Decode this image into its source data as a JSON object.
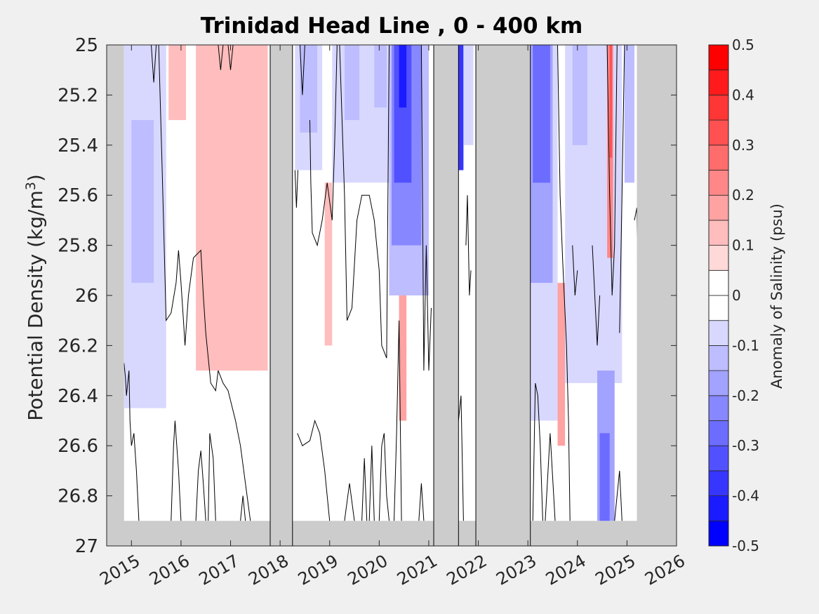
{
  "chart_data": {
    "type": "heatmap",
    "title": "Trinidad Head Line , 0 - 400 km",
    "xlabel": "",
    "ylabel": "Potential Density (kg/m",
    "ylabel_sup": "3",
    "ylabel_close": ")",
    "xlim": [
      2014.5,
      2026.0
    ],
    "ylim": [
      25.0,
      27.0
    ],
    "y_reversed": true,
    "x_ticks": [
      2015,
      2016,
      2017,
      2018,
      2019,
      2020,
      2021,
      2022,
      2023,
      2024,
      2025,
      2026
    ],
    "x_tick_labels": [
      "2015",
      "2016",
      "2017",
      "2018",
      "2019",
      "2020",
      "2021",
      "2022",
      "2023",
      "2024",
      "2025",
      "2026"
    ],
    "y_ticks": [
      25.0,
      25.2,
      25.4,
      25.6,
      25.8,
      26.0,
      26.2,
      26.4,
      26.6,
      26.8,
      27.0
    ],
    "y_tick_labels": [
      "25",
      "25.2",
      "25.4",
      "25.6",
      "25.8",
      "26",
      "26.2",
      "26.4",
      "26.6",
      "26.8",
      "27"
    ],
    "missing_data_color": "#cccccc",
    "data_floor_density": 26.9,
    "data_start": 2014.85,
    "data_end": 2025.2,
    "gaps": [
      [
        2017.8,
        2018.25
      ],
      [
        2021.1,
        2021.6
      ],
      [
        2021.95,
        2023.05
      ]
    ],
    "colorbar": {
      "label": "Anomaly of Salinity (psu)",
      "range": [
        -0.5,
        0.5
      ],
      "levels": [
        -0.5,
        -0.45,
        -0.4,
        -0.35,
        -0.3,
        -0.25,
        -0.2,
        -0.15,
        -0.1,
        -0.05,
        0,
        0.05,
        0.1,
        0.15,
        0.2,
        0.25,
        0.3,
        0.35,
        0.4,
        0.45,
        0.5
      ],
      "colors": [
        "#0000ff",
        "#1b1bff",
        "#3636ff",
        "#5151ff",
        "#6c6cff",
        "#8787ff",
        "#a2a2ff",
        "#bdbdff",
        "#d8d8ff",
        "#ffffff",
        "#ffffff",
        "#ffd8d8",
        "#ffbdbd",
        "#ffa2a2",
        "#ff8787",
        "#ff6c6c",
        "#ff5151",
        "#ff3636",
        "#ff1b1b",
        "#ff0000"
      ],
      "tick_values": [
        0.5,
        0.4,
        0.3,
        0.2,
        0.1,
        0,
        -0.1,
        -0.2,
        -0.3,
        -0.4,
        -0.5
      ],
      "tick_labels": [
        "0.5",
        "0.4",
        "0.3",
        "0.2",
        "0.1",
        "0",
        "-0.1",
        "-0.2",
        "-0.3",
        "-0.4",
        "-0.5"
      ]
    },
    "anomaly_patches": [
      {
        "x0": 2014.85,
        "x1": 2015.7,
        "y0": 25.0,
        "y1": 26.45,
        "value": -0.1
      },
      {
        "x0": 2015.0,
        "x1": 2015.45,
        "y0": 25.3,
        "y1": 25.95,
        "value": -0.15
      },
      {
        "x0": 2015.75,
        "x1": 2016.1,
        "y0": 25.0,
        "y1": 25.3,
        "value": 0.1
      },
      {
        "x0": 2016.3,
        "x1": 2017.75,
        "y0": 25.0,
        "y1": 26.3,
        "value": 0.1
      },
      {
        "x0": 2018.3,
        "x1": 2018.85,
        "y0": 25.0,
        "y1": 25.5,
        "value": -0.1
      },
      {
        "x0": 2018.4,
        "x1": 2018.75,
        "y0": 25.0,
        "y1": 25.35,
        "value": -0.15
      },
      {
        "x0": 2018.9,
        "x1": 2019.05,
        "y0": 25.55,
        "y1": 26.2,
        "value": 0.1
      },
      {
        "x0": 2019.05,
        "x1": 2020.2,
        "y0": 25.0,
        "y1": 25.55,
        "value": -0.1
      },
      {
        "x0": 2019.3,
        "x1": 2019.6,
        "y0": 25.0,
        "y1": 25.3,
        "value": -0.15
      },
      {
        "x0": 2019.9,
        "x1": 2020.15,
        "y0": 25.0,
        "y1": 25.25,
        "value": -0.15
      },
      {
        "x0": 2020.2,
        "x1": 2021.0,
        "y0": 25.0,
        "y1": 26.0,
        "value": -0.15
      },
      {
        "x0": 2020.25,
        "x1": 2020.85,
        "y0": 25.0,
        "y1": 25.8,
        "value": -0.25
      },
      {
        "x0": 2020.3,
        "x1": 2020.65,
        "y0": 25.0,
        "y1": 25.55,
        "value": -0.35
      },
      {
        "x0": 2020.4,
        "x1": 2020.55,
        "y0": 25.0,
        "y1": 25.25,
        "value": -0.45
      },
      {
        "x0": 2020.4,
        "x1": 2020.55,
        "y0": 26.0,
        "y1": 26.5,
        "value": 0.15
      },
      {
        "x0": 2021.6,
        "x1": 2021.7,
        "y0": 25.0,
        "y1": 25.5,
        "value": -0.4
      },
      {
        "x0": 2021.7,
        "x1": 2021.9,
        "y0": 25.0,
        "y1": 25.4,
        "value": -0.1
      },
      {
        "x0": 2023.05,
        "x1": 2023.6,
        "y0": 25.0,
        "y1": 26.5,
        "value": -0.1
      },
      {
        "x0": 2023.05,
        "x1": 2023.5,
        "y0": 25.0,
        "y1": 25.95,
        "value": -0.2
      },
      {
        "x0": 2023.1,
        "x1": 2023.45,
        "y0": 25.0,
        "y1": 25.55,
        "value": -0.3
      },
      {
        "x0": 2023.6,
        "x1": 2023.75,
        "y0": 25.95,
        "y1": 26.6,
        "value": 0.15
      },
      {
        "x0": 2023.75,
        "x1": 2024.9,
        "y0": 25.0,
        "y1": 26.35,
        "value": -0.1
      },
      {
        "x0": 2023.9,
        "x1": 2024.2,
        "y0": 25.0,
        "y1": 25.4,
        "value": -0.15
      },
      {
        "x0": 2024.4,
        "x1": 2024.75,
        "y0": 26.3,
        "y1": 26.9,
        "value": -0.2
      },
      {
        "x0": 2024.45,
        "x1": 2024.65,
        "y0": 26.55,
        "y1": 26.9,
        "value": -0.3
      },
      {
        "x0": 2024.6,
        "x1": 2024.72,
        "y0": 25.0,
        "y1": 25.85,
        "value": 0.2
      },
      {
        "x0": 2024.65,
        "x1": 2024.7,
        "y0": 25.0,
        "y1": 25.45,
        "value": 0.3
      },
      {
        "x0": 2024.95,
        "x1": 2025.15,
        "y0": 25.0,
        "y1": 25.55,
        "value": -0.15
      }
    ],
    "zero_contours": [
      [
        [
          2014.85,
          26.27
        ],
        [
          2014.88,
          26.33
        ],
        [
          2014.9,
          26.4
        ],
        [
          2014.95,
          26.3
        ],
        [
          2014.97,
          26.5
        ],
        [
          2015.0,
          26.6
        ],
        [
          2015.05,
          26.55
        ],
        [
          2015.1,
          26.7
        ],
        [
          2015.15,
          26.9
        ]
      ],
      [
        [
          2015.4,
          25.0
        ],
        [
          2015.45,
          25.15
        ],
        [
          2015.5,
          25.0
        ]
      ],
      [
        [
          2015.55,
          25.0
        ],
        [
          2015.62,
          25.5
        ],
        [
          2015.7,
          26.1
        ],
        [
          2015.8,
          26.07
        ],
        [
          2015.9,
          25.95
        ],
        [
          2015.95,
          25.82
        ],
        [
          2016.0,
          25.95
        ],
        [
          2016.05,
          26.1
        ],
        [
          2016.08,
          26.2
        ],
        [
          2016.15,
          26.0
        ],
        [
          2016.25,
          25.85
        ],
        [
          2016.4,
          25.82
        ],
        [
          2016.45,
          26.0
        ],
        [
          2016.5,
          26.15
        ],
        [
          2016.6,
          26.35
        ],
        [
          2016.7,
          26.38
        ],
        [
          2016.75,
          26.3
        ],
        [
          2016.85,
          26.35
        ],
        [
          2016.95,
          26.38
        ],
        [
          2017.0,
          26.42
        ],
        [
          2017.1,
          26.5
        ],
        [
          2017.2,
          26.6
        ],
        [
          2017.3,
          26.75
        ],
        [
          2017.4,
          26.9
        ]
      ],
      [
        [
          2015.8,
          26.9
        ],
        [
          2015.85,
          26.6
        ],
        [
          2015.88,
          26.5
        ],
        [
          2015.95,
          26.7
        ],
        [
          2016.0,
          26.9
        ]
      ],
      [
        [
          2016.3,
          26.9
        ],
        [
          2016.35,
          26.7
        ],
        [
          2016.4,
          26.62
        ],
        [
          2016.45,
          26.75
        ],
        [
          2016.5,
          26.9
        ]
      ],
      [
        [
          2016.55,
          26.9
        ],
        [
          2016.58,
          26.55
        ],
        [
          2016.65,
          26.65
        ],
        [
          2016.7,
          26.9
        ]
      ],
      [
        [
          2017.2,
          26.9
        ],
        [
          2017.25,
          26.8
        ],
        [
          2017.3,
          26.9
        ]
      ],
      [
        [
          2016.75,
          25.0
        ],
        [
          2016.8,
          25.1
        ],
        [
          2016.85,
          25.0
        ]
      ],
      [
        [
          2016.95,
          25.0
        ],
        [
          2017.0,
          25.1
        ],
        [
          2017.05,
          25.0
        ]
      ],
      [
        [
          2018.3,
          25.5
        ],
        [
          2018.33,
          25.65
        ],
        [
          2018.36,
          25.5
        ]
      ],
      [
        [
          2018.35,
          26.55
        ],
        [
          2018.45,
          26.6
        ],
        [
          2018.6,
          26.58
        ],
        [
          2018.7,
          26.5
        ],
        [
          2018.8,
          26.55
        ],
        [
          2018.9,
          26.7
        ],
        [
          2019.0,
          26.9
        ]
      ],
      [
        [
          2018.4,
          25.0
        ],
        [
          2018.45,
          25.2
        ],
        [
          2018.5,
          25.0
        ]
      ],
      [
        [
          2018.6,
          25.3
        ],
        [
          2018.62,
          25.55
        ],
        [
          2018.65,
          25.75
        ],
        [
          2018.75,
          25.8
        ],
        [
          2018.85,
          25.7
        ],
        [
          2018.95,
          25.55
        ],
        [
          2019.05,
          25.7
        ],
        [
          2019.1,
          25.4
        ],
        [
          2019.15,
          25.0
        ]
      ],
      [
        [
          2019.2,
          25.0
        ],
        [
          2019.3,
          25.6
        ],
        [
          2019.35,
          26.1
        ],
        [
          2019.45,
          26.05
        ],
        [
          2019.55,
          25.7
        ],
        [
          2019.65,
          25.6
        ],
        [
          2019.8,
          25.6
        ],
        [
          2019.9,
          25.7
        ],
        [
          2020.0,
          25.9
        ],
        [
          2020.05,
          26.2
        ],
        [
          2020.15,
          26.25
        ],
        [
          2020.2,
          25.0
        ]
      ],
      [
        [
          2019.3,
          26.9
        ],
        [
          2019.4,
          26.75
        ],
        [
          2019.5,
          26.9
        ]
      ],
      [
        [
          2019.65,
          26.9
        ],
        [
          2019.7,
          26.65
        ],
        [
          2019.75,
          26.9
        ]
      ],
      [
        [
          2019.8,
          26.9
        ],
        [
          2019.85,
          26.6
        ],
        [
          2019.9,
          26.9
        ]
      ],
      [
        [
          2020.0,
          26.9
        ],
        [
          2020.05,
          26.6
        ],
        [
          2020.1,
          26.55
        ],
        [
          2020.15,
          26.8
        ],
        [
          2020.2,
          26.9
        ]
      ],
      [
        [
          2020.3,
          26.9
        ],
        [
          2020.35,
          26.55
        ],
        [
          2020.4,
          26.1
        ],
        [
          2020.45,
          26.9
        ]
      ],
      [
        [
          2020.8,
          26.9
        ],
        [
          2020.85,
          26.75
        ],
        [
          2020.9,
          26.9
        ]
      ],
      [
        [
          2020.85,
          25.0
        ],
        [
          2020.9,
          26.3
        ],
        [
          2020.95,
          25.8
        ],
        [
          2021.0,
          26.3
        ],
        [
          2021.05,
          26.05
        ]
      ],
      [
        [
          2021.6,
          26.5
        ],
        [
          2021.65,
          26.4
        ],
        [
          2021.7,
          26.9
        ]
      ],
      [
        [
          2021.75,
          25.8
        ],
        [
          2021.78,
          25.6
        ],
        [
          2021.82,
          26.0
        ],
        [
          2021.85,
          25.9
        ]
      ],
      [
        [
          2023.1,
          26.9
        ],
        [
          2023.15,
          26.35
        ],
        [
          2023.2,
          26.4
        ],
        [
          2023.25,
          26.6
        ],
        [
          2023.3,
          26.9
        ]
      ],
      [
        [
          2023.35,
          26.9
        ],
        [
          2023.45,
          26.55
        ],
        [
          2023.55,
          26.9
        ]
      ],
      [
        [
          2023.6,
          25.0
        ],
        [
          2023.65,
          25.6
        ],
        [
          2023.7,
          25.85
        ],
        [
          2023.78,
          26.2
        ],
        [
          2023.82,
          26.5
        ],
        [
          2023.85,
          26.9
        ]
      ],
      [
        [
          2023.9,
          25.8
        ],
        [
          2023.95,
          26.0
        ],
        [
          2024.0,
          25.9
        ]
      ],
      [
        [
          2024.3,
          25.8
        ],
        [
          2024.4,
          26.2
        ],
        [
          2024.45,
          26.0
        ]
      ],
      [
        [
          2024.6,
          25.0
        ],
        [
          2024.65,
          25.6
        ],
        [
          2024.7,
          26.0
        ],
        [
          2024.75,
          25.8
        ],
        [
          2024.8,
          25.0
        ]
      ],
      [
        [
          2024.85,
          26.15
        ],
        [
          2024.9,
          25.6
        ],
        [
          2024.95,
          25.0
        ]
      ],
      [
        [
          2024.75,
          26.9
        ],
        [
          2024.85,
          26.7
        ],
        [
          2024.9,
          26.9
        ]
      ],
      [
        [
          2025.15,
          25.7
        ],
        [
          2025.2,
          25.65
        ],
        [
          2025.25,
          26.5
        ],
        [
          2025.28,
          26.65
        ]
      ]
    ]
  }
}
